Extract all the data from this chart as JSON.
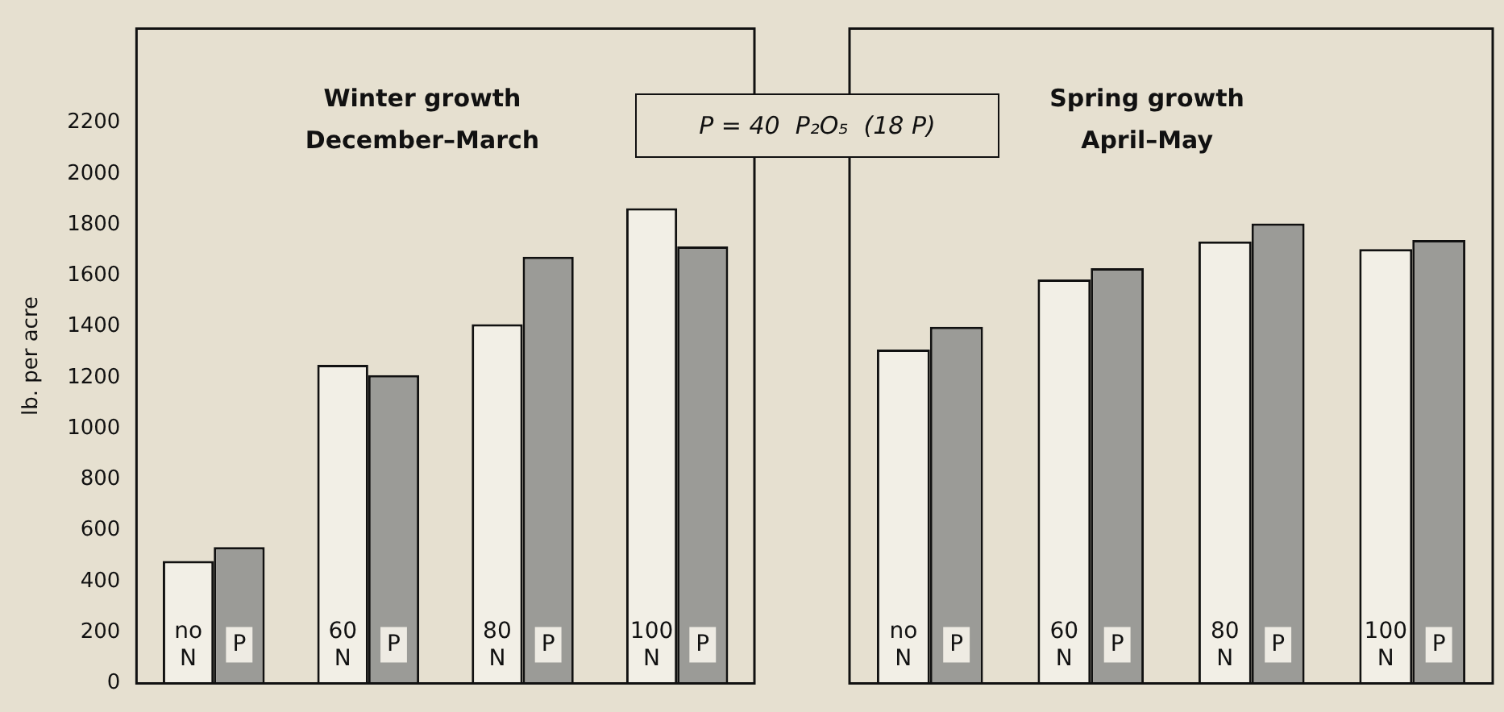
{
  "chart_data": [
    {
      "type": "bar",
      "title": "Winter growth",
      "subtitle": "December–March",
      "ylabel": "lb. per acre",
      "categories": [
        "no N",
        "60 N",
        "80 N",
        "100 N"
      ],
      "series": [
        {
          "color": "#f2efe6",
          "values": [
            480,
            1250,
            1410,
            1865
          ]
        },
        {
          "name": "P",
          "color": "#9b9b97",
          "values": [
            535,
            1210,
            1675,
            1715
          ]
        }
      ],
      "ylim": [
        0,
        2570
      ],
      "yticks": [
        0,
        200,
        400,
        600,
        800,
        1000,
        1200,
        1400,
        1600,
        1800,
        2000,
        2200
      ],
      "tick_labels": "y",
      "annotations": [
        "P = 40  P₂O₅  (18 P)"
      ]
    },
    {
      "type": "bar",
      "title": "Spring growth",
      "subtitle": "April–May",
      "categories": [
        "no N",
        "60 N",
        "80 N",
        "100 N"
      ],
      "series": [
        {
          "color": "#f2efe6",
          "values": [
            1310,
            1585,
            1735,
            1705
          ]
        },
        {
          "name": "P",
          "color": "#9b9b97",
          "values": [
            1400,
            1630,
            1805,
            1740
          ]
        }
      ],
      "ylim": [
        0,
        2570
      ],
      "yticks": [
        0,
        200,
        400,
        600,
        800,
        1000,
        1200,
        1400,
        1600,
        1800,
        2000,
        2200
      ],
      "tick_labels": false
    }
  ]
}
